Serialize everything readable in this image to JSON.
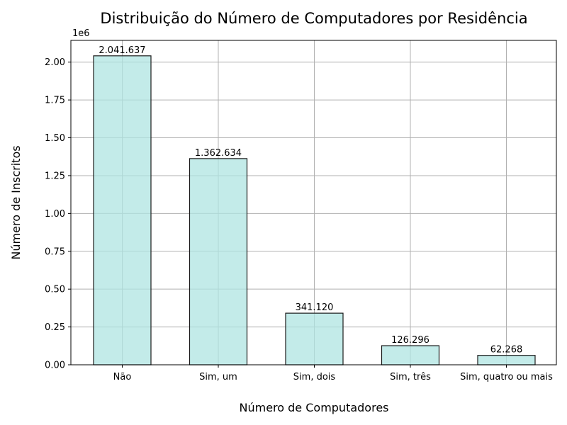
{
  "chart_data": {
    "type": "bar",
    "title": "Distribuição do Número de Computadores por Residência",
    "xlabel": "Número de Computadores",
    "ylabel": "Número de Inscritos",
    "y_offset_label": "1e6",
    "categories": [
      "Não",
      "Sim, um",
      "Sim, dois",
      "Sim, três",
      "Sim, quatro ou mais"
    ],
    "values": [
      2041637,
      1362634,
      341120,
      126296,
      62268
    ],
    "value_labels": [
      "2.041.637",
      "1.362.634",
      "341.120",
      "126.296",
      "62.268"
    ],
    "yticks": [
      0,
      250000,
      500000,
      750000,
      1000000,
      1250000,
      1500000,
      1750000,
      2000000
    ],
    "ytick_labels": [
      "0.00",
      "0.25",
      "0.50",
      "0.75",
      "1.00",
      "1.25",
      "1.50",
      "1.75",
      "2.00"
    ],
    "ylim": [
      0,
      2143719
    ],
    "grid": true,
    "colors": {
      "bar_fill": "#afe4e1",
      "bar_edge": "#1a1a1a",
      "grid": "#b0b0b0"
    }
  }
}
